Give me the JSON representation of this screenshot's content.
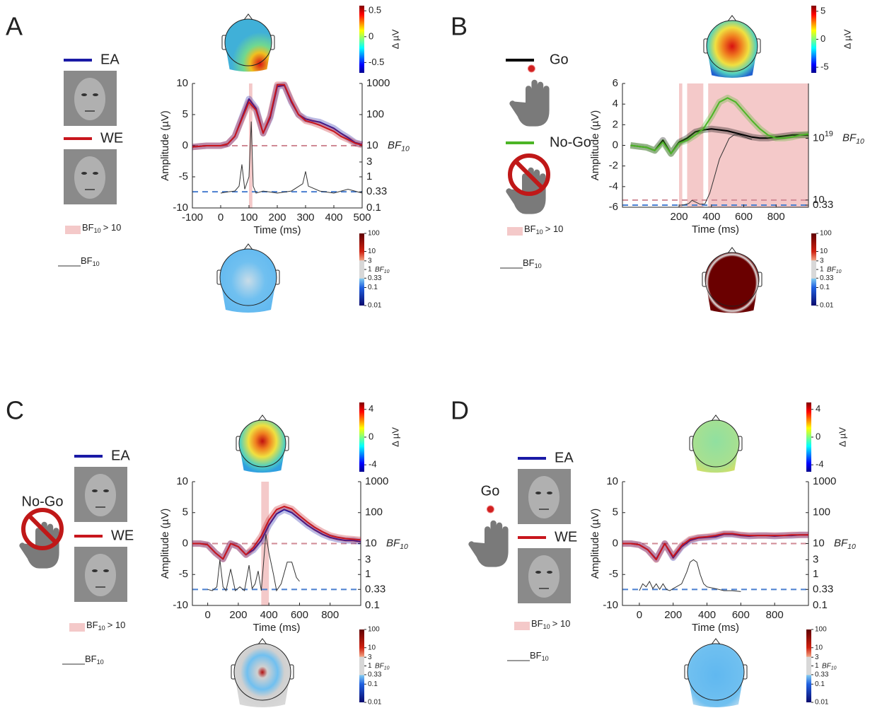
{
  "chart_data": [
    {
      "type": "line",
      "panel_label": "A",
      "ylabel": "Amplitude (µV)",
      "xlabel": "Time (ms)",
      "x": [
        -100,
        -75,
        -50,
        -25,
        0,
        25,
        50,
        75,
        100,
        125,
        150,
        175,
        200,
        225,
        250,
        275,
        300,
        325,
        350,
        375,
        400,
        425,
        450,
        475,
        500
      ],
      "series": [
        {
          "name": "EA",
          "color": "#1a1aa6",
          "values": [
            -0.2,
            -0.1,
            0,
            0,
            0,
            0.3,
            1.5,
            4.5,
            7.5,
            6,
            2,
            4.5,
            9.5,
            9.7,
            7,
            5,
            4.3,
            4,
            3.8,
            3.3,
            2.8,
            2,
            1.3,
            0.5,
            0.2
          ]
        },
        {
          "name": "WE",
          "color": "#c8161d",
          "values": [
            -0.2,
            -0.1,
            0,
            0,
            0,
            0.3,
            1.5,
            4.3,
            7,
            5.7,
            2,
            4.8,
            9.8,
            9.8,
            7.2,
            5,
            4,
            3.7,
            3.3,
            2.8,
            2.3,
            1.5,
            1,
            0.4,
            0.1
          ]
        }
      ],
      "bf": {
        "x": [
          0,
          25,
          50,
          65,
          75,
          85,
          100,
          108,
          115,
          125,
          150,
          200,
          250,
          290,
          300,
          310,
          350,
          400,
          450,
          500
        ],
        "values": [
          0.3,
          0.33,
          0.35,
          0.5,
          2.5,
          0.4,
          1,
          60,
          0.5,
          0.3,
          0.35,
          0.3,
          0.35,
          0.6,
          1.5,
          0.5,
          0.35,
          0.3,
          0.4,
          0.3
        ],
        "color": "#333333"
      },
      "shaded": [
        [
          100,
          112
        ]
      ],
      "shade_color": "#f4c9c9",
      "xlim": [
        -100,
        500
      ],
      "xticks": [
        -100,
        0,
        100,
        200,
        300,
        400,
        500
      ],
      "ylim": [
        -10,
        10
      ],
      "yticks": [
        -10,
        -5,
        0,
        5,
        10
      ],
      "y2lim": [
        0.1,
        1000
      ],
      "y2scale": "log",
      "y2ticks": [
        0.1,
        0.33,
        1,
        3,
        10,
        100,
        1000
      ],
      "y2label": [
        "BF",
        "10"
      ],
      "ref_lines": [
        {
          "value": 10,
          "color": "#d08a95"
        },
        {
          "value": 0.33,
          "color": "#4a7fd0"
        }
      ],
      "shade_legend": [
        "BF",
        "10",
        "> 10"
      ],
      "line_legend": [
        "BF",
        "10"
      ],
      "cbar": {
        "clim": [
          -0.7,
          0.6
        ],
        "ticks": [
          0.5,
          0,
          -0.5
        ],
        "label": "Δ µV"
      },
      "bf_cbar": {
        "clim": [
          0.01,
          100
        ],
        "scale": "log",
        "ticks": [
          100,
          10,
          3,
          1,
          0.33,
          0.1,
          0.01
        ],
        "label": [
          "BF",
          "10"
        ]
      }
    },
    {
      "type": "line",
      "panel_label": "B",
      "ylabel": "Amplitude (µV)",
      "xlabel": "Time (ms)",
      "x": [
        -100,
        -50,
        0,
        50,
        100,
        150,
        200,
        250,
        300,
        350,
        400,
        450,
        500,
        550,
        600,
        650,
        700,
        750,
        800,
        850,
        900,
        950,
        1000
      ],
      "series": [
        {
          "name": "Go",
          "color": "#000000",
          "values": [
            0,
            -0.1,
            -0.2,
            -0.5,
            0.5,
            -0.8,
            0.3,
            0.7,
            1.3,
            1.5,
            1.6,
            1.5,
            1.4,
            1.2,
            1.0,
            0.8,
            0.7,
            0.7,
            0.8,
            0.9,
            1.0,
            1.0,
            1.0
          ]
        },
        {
          "name": "No-Go",
          "color": "#4cb526",
          "values": [
            0,
            -0.1,
            -0.2,
            -0.5,
            0.3,
            -0.8,
            0.2,
            0.5,
            1.0,
            1.6,
            2.8,
            4.2,
            4.6,
            4.2,
            3.3,
            2.4,
            1.6,
            1.0,
            0.7,
            0.7,
            0.8,
            1.0,
            1.1
          ]
        }
      ],
      "bf": {
        "x": [
          200,
          230,
          260,
          280,
          300,
          330,
          360,
          390,
          420,
          450,
          480,
          510,
          540,
          570,
          600,
          630,
          650
        ],
        "values": [
          0.3,
          0.4,
          1,
          8,
          3,
          0.6,
          0.8,
          1000,
          100000000.0,
          10000000000000.0,
          1e+16,
          1e+19,
          1e+20,
          1e+20,
          3e+19,
          1e+19,
          5e+18
        ],
        "color": "#333333"
      },
      "shaded": [
        [
          200,
          220
        ],
        [
          250,
          350
        ],
        [
          380,
          1000
        ]
      ],
      "shade_color": "#f4c9c9",
      "xlim": [
        -150,
        1000
      ],
      "xticks": [
        200,
        400,
        600,
        800
      ],
      "ylim": [
        -6,
        6
      ],
      "yticks": [
        -6,
        -4,
        -2,
        0,
        2,
        4,
        6
      ],
      "y2lim": [
        0.08,
        1e+35
      ],
      "y2scale": "log",
      "y2ticks": [
        0.33,
        10,
        {
          "value": 1e+19,
          "label": "10",
          "sup": "19"
        }
      ],
      "y2label": [
        "BF",
        "10"
      ],
      "ref_lines": [
        {
          "value": 10,
          "color": "#d08a95"
        },
        {
          "value": 0.33,
          "color": "#4a7fd0"
        }
      ],
      "shade_legend": [
        "BF",
        "10",
        "> 10"
      ],
      "line_legend": [
        "BF",
        "10"
      ],
      "cbar": {
        "clim": [
          -6,
          6
        ],
        "ticks": [
          5,
          0,
          -5
        ],
        "label": "Δ µV"
      },
      "bf_cbar": {
        "clim": [
          0.01,
          100
        ],
        "scale": "log",
        "ticks": [
          100,
          10,
          3,
          1,
          0.33,
          0.1,
          0.01
        ],
        "label": [
          "BF",
          "10"
        ]
      }
    },
    {
      "type": "line",
      "panel_label": "C",
      "condition_label": "No-Go",
      "ylabel": "Amplitude (µV)",
      "xlabel": "Time (ms)",
      "x": [
        -100,
        -50,
        0,
        50,
        100,
        150,
        200,
        250,
        300,
        350,
        400,
        450,
        500,
        550,
        600,
        650,
        700,
        750,
        800,
        850,
        900,
        950,
        1000
      ],
      "series": [
        {
          "name": "EA",
          "color": "#1a1aa6",
          "values": [
            0,
            0,
            -0.2,
            -1.5,
            -2.5,
            0,
            -0.5,
            -1.8,
            -1,
            0.5,
            3,
            4.8,
            5.5,
            5,
            4,
            3,
            2.2,
            1.5,
            1.0,
            0.7,
            0.5,
            0.5,
            0.3
          ]
        },
        {
          "name": "WE",
          "color": "#c8161d",
          "values": [
            0,
            0,
            -0.2,
            -1.5,
            -2.5,
            0,
            -0.5,
            -1.8,
            -0.6,
            1.2,
            3.8,
            5.5,
            6.0,
            5.6,
            4.5,
            3.5,
            2.6,
            1.9,
            1.3,
            1.0,
            0.8,
            0.7,
            0.6
          ]
        }
      ],
      "bf": {
        "x": [
          0,
          30,
          60,
          80,
          100,
          120,
          150,
          180,
          210,
          240,
          270,
          290,
          310,
          330,
          350,
          380,
          400,
          430,
          450,
          480,
          520,
          550,
          580,
          600
        ],
        "values": [
          0.33,
          0.3,
          0.4,
          3,
          0.4,
          0.3,
          1.5,
          0.3,
          0.4,
          0.3,
          2,
          0.35,
          0.5,
          1.3,
          0.3,
          20,
          5,
          1,
          0.3,
          0.5,
          2.5,
          2.5,
          0.8,
          0.6
        ],
        "color": "#333333"
      },
      "shaded": [
        [
          350,
          400
        ]
      ],
      "shade_color": "#f4c9c9",
      "xlim": [
        -100,
        1000
      ],
      "xticks": [
        0,
        200,
        400,
        600,
        800
      ],
      "ylim": [
        -10,
        10
      ],
      "yticks": [
        -10,
        -5,
        0,
        5,
        10
      ],
      "y2lim": [
        0.1,
        1000
      ],
      "y2scale": "log",
      "y2ticks": [
        0.1,
        0.33,
        1,
        3,
        10,
        100,
        1000
      ],
      "y2label": [
        "BF",
        "10"
      ],
      "ref_lines": [
        {
          "value": 10,
          "color": "#d08a95"
        },
        {
          "value": 0.33,
          "color": "#4a7fd0"
        }
      ],
      "shade_legend": [
        "BF",
        "10",
        "> 10"
      ],
      "line_legend": [
        "BF",
        "10"
      ],
      "cbar": {
        "clim": [
          -5,
          5
        ],
        "ticks": [
          4,
          0,
          -4
        ],
        "label": "Δ µV"
      },
      "bf_cbar": {
        "clim": [
          0.01,
          100
        ],
        "scale": "log",
        "ticks": [
          100,
          10,
          3,
          1,
          0.33,
          0.1,
          0.01
        ],
        "label": [
          "BF",
          "10"
        ]
      }
    },
    {
      "type": "line",
      "panel_label": "D",
      "condition_label": "Go",
      "ylabel": "Amplitude (µV)",
      "xlabel": "Time (ms)",
      "x": [
        -100,
        -50,
        0,
        50,
        100,
        150,
        200,
        250,
        300,
        350,
        400,
        450,
        500,
        550,
        600,
        650,
        700,
        750,
        800,
        850,
        900,
        950,
        1000
      ],
      "series": [
        {
          "name": "EA",
          "color": "#1a1aa6",
          "values": [
            0,
            0,
            -0.2,
            -1,
            -2.5,
            0,
            -2.3,
            -0.5,
            0.5,
            0.9,
            1.0,
            1.1,
            1.5,
            1.5,
            1.3,
            1.2,
            1.3,
            1.3,
            1.2,
            1.3,
            1.3,
            1.4,
            1.4
          ]
        },
        {
          "name": "WE",
          "color": "#c8161d",
          "values": [
            0,
            0,
            -0.2,
            -1,
            -2.6,
            0,
            -2.1,
            -0.3,
            0.7,
            1.0,
            1.1,
            1.3,
            1.6,
            1.6,
            1.4,
            1.3,
            1.3,
            1.3,
            1.3,
            1.3,
            1.4,
            1.4,
            1.4
          ]
        }
      ],
      "bf": {
        "x": [
          0,
          20,
          40,
          60,
          80,
          100,
          120,
          140,
          160,
          180,
          200,
          250,
          280,
          300,
          320,
          340,
          360,
          380,
          400,
          450,
          500,
          550,
          600
        ],
        "values": [
          0.3,
          0.5,
          0.4,
          0.6,
          0.35,
          0.5,
          0.33,
          0.5,
          0.33,
          0.3,
          0.35,
          0.5,
          1.2,
          2.5,
          3,
          2.5,
          1,
          0.5,
          0.4,
          0.35,
          0.3,
          0.3,
          0.28
        ],
        "color": "#333333"
      },
      "shaded": [],
      "shade_color": "#f4c9c9",
      "xlim": [
        -100,
        1000
      ],
      "xticks": [
        0,
        200,
        400,
        600,
        800
      ],
      "ylim": [
        -10,
        10
      ],
      "yticks": [
        -10,
        -5,
        0,
        5,
        10
      ],
      "y2lim": [
        0.1,
        1000
      ],
      "y2scale": "log",
      "y2ticks": [
        0.1,
        0.33,
        1,
        3,
        10,
        100,
        1000
      ],
      "y2label": [
        "BF",
        "10"
      ],
      "ref_lines": [
        {
          "value": 10,
          "color": "#d08a95"
        },
        {
          "value": 0.33,
          "color": "#4a7fd0"
        }
      ],
      "shade_legend": [
        "BF",
        "10",
        "> 10"
      ],
      "line_legend": [
        "BF",
        "10"
      ],
      "cbar": {
        "clim": [
          -5,
          5
        ],
        "ticks": [
          4,
          0,
          -4
        ],
        "label": "Δ µV"
      },
      "bf_cbar": {
        "clim": [
          0.01,
          100
        ],
        "scale": "log",
        "ticks": [
          100,
          10,
          3,
          1,
          0.33,
          0.1,
          0.01
        ],
        "label": [
          "BF",
          "10"
        ]
      }
    }
  ]
}
